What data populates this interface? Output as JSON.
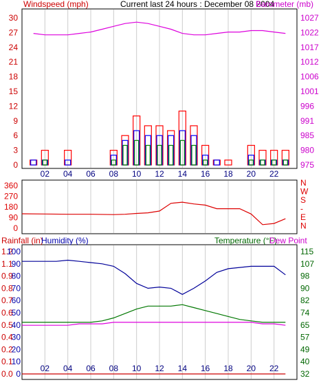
{
  "header": {
    "left_label": "Windspeed (mph)",
    "center_label": "Current last 24 hours : December 08 2004",
    "right_label": "Barometer (mb)"
  },
  "colors": {
    "windspeed_axis": "#cc0000",
    "barometer_axis": "#cc00cc",
    "rainfall_axis": "#cc0000",
    "humidity_axis": "#0000aa",
    "temperature_axis": "#006600",
    "dewpoint_axis": "#cc00cc",
    "wind_bar_red": "#ff0000",
    "wind_bar_blue": "#0000ff",
    "wind_bar_green": "#008000",
    "barometer_line": "#dd00dd",
    "direction_line": "#dd0000",
    "humidity_line": "#000099",
    "temperature_line": "#007700",
    "dewpoint_line": "#dd00dd",
    "rain_line": "#cc0000",
    "grid": "#cccccc"
  },
  "x_ticks": [
    "02",
    "04",
    "06",
    "08",
    "10",
    "12",
    "14",
    "16",
    "18",
    "20",
    "22"
  ],
  "chart_data": [
    {
      "type": "bar",
      "panel": "wind_baro",
      "left_axis": {
        "label": "Windspeed (mph)",
        "ticks": [
          "0",
          "3",
          "6",
          "9",
          "12",
          "15",
          "18",
          "21",
          "24",
          "27",
          "30"
        ],
        "ylim": [
          0,
          30
        ]
      },
      "right_axis": {
        "label": "Barometer (mb)",
        "ticks": [
          "975",
          "980",
          "985",
          "991",
          "996",
          "1001",
          "1006",
          "1012",
          "1017",
          "1022",
          "1027"
        ],
        "ylim": [
          975,
          1027
        ]
      },
      "x": [
        "01",
        "02",
        "03",
        "04",
        "05",
        "06",
        "07",
        "08",
        "09",
        "10",
        "11",
        "12",
        "13",
        "14",
        "15",
        "16",
        "17",
        "18",
        "19",
        "20",
        "21",
        "22",
        "23"
      ],
      "series": [
        {
          "kind": "gust_max",
          "values": [
            1,
            3,
            0,
            3,
            0,
            0,
            0,
            3,
            6,
            10,
            8,
            8,
            7,
            11,
            8,
            4,
            1,
            1,
            0,
            4,
            3,
            3,
            3
          ]
        },
        {
          "kind": "average",
          "values": [
            1,
            1,
            0,
            1,
            0,
            0,
            0,
            2,
            5,
            7,
            6,
            6,
            6,
            7,
            6,
            2,
            1,
            0,
            0,
            2,
            1,
            1,
            1
          ]
        },
        {
          "kind": "minimum",
          "values": [
            0,
            1,
            0,
            0,
            0,
            0,
            0,
            1,
            4,
            5,
            4,
            4,
            4,
            5,
            4,
            1,
            0,
            0,
            0,
            1,
            1,
            1,
            1
          ]
        },
        {
          "kind": "barometer",
          "values": [
            1021.5,
            1021,
            1021,
            1021,
            1021.5,
            1022,
            1023,
            1024,
            1025,
            1025.5,
            1025,
            1024,
            1023,
            1021.5,
            1021,
            1021,
            1021.5,
            1022,
            1022,
            1022.5,
            1022.5,
            1022,
            1021.5
          ]
        }
      ]
    },
    {
      "type": "line",
      "panel": "direction",
      "left_axis": {
        "ticks": [
          "0",
          "90",
          "180",
          "270",
          "360"
        ],
        "ylim": [
          0,
          360
        ]
      },
      "right_axis": {
        "ticks": [
          "N",
          "W",
          "S",
          "-",
          "E",
          "N"
        ]
      },
      "x": [
        "00",
        "02",
        "04",
        "06",
        "08",
        "09",
        "10",
        "11",
        "12",
        "13",
        "14",
        "15",
        "16",
        "17",
        "18",
        "19",
        "20",
        "21",
        "22",
        "23"
      ],
      "series": [
        {
          "name": "",
          "values": [
            122,
            120,
            118,
            118,
            115,
            118,
            125,
            130,
            145,
            210,
            220,
            205,
            195,
            165,
            165,
            165,
            120,
            30,
            40,
            80
          ]
        }
      ]
    },
    {
      "type": "line",
      "panel": "humidity_temp",
      "labels": {
        "rainfall": "Rainfall (in)",
        "humidity": "Humidity (%)",
        "temperature": "Temperature (°F)",
        "dewpoint": "Dew Point"
      },
      "rain_axis": {
        "ticks": [
          "0.0",
          "0.1",
          "0.2",
          "0.4",
          "0.5",
          "0.6",
          "0.7",
          "0.8",
          "0.9",
          "1.1",
          "1.2"
        ],
        "ylim": [
          0,
          1.2
        ]
      },
      "humidity_axis": {
        "ticks": [
          "0",
          "10",
          "20",
          "30",
          "40",
          "50",
          "60",
          "70",
          "80",
          "90",
          "100"
        ],
        "ylim": [
          0,
          100
        ]
      },
      "temp_axis": {
        "ticks": [
          "32",
          "40",
          "49",
          "57",
          "65",
          "74",
          "82",
          "90",
          "98",
          "107",
          "115"
        ],
        "ylim": [
          32,
          115
        ]
      },
      "x": [
        "00",
        "01",
        "02",
        "03",
        "04",
        "05",
        "06",
        "07",
        "08",
        "09",
        "10",
        "11",
        "12",
        "13",
        "14",
        "15",
        "16",
        "17",
        "18",
        "19",
        "20",
        "21",
        "22",
        "23"
      ],
      "series": [
        {
          "kind": "humidity",
          "values": [
            92,
            92,
            92,
            92,
            93,
            92,
            91,
            90,
            88,
            82,
            74,
            70,
            71,
            70,
            65,
            70,
            76,
            83,
            86,
            87,
            88,
            88,
            88,
            81
          ]
        },
        {
          "kind": "temperature",
          "values": [
            67,
            67,
            67,
            67,
            67,
            67,
            67,
            68,
            70,
            73,
            76,
            78,
            78,
            78,
            79,
            77,
            75,
            73,
            71,
            69,
            68,
            67,
            67,
            67
          ]
        },
        {
          "kind": "dewpoint",
          "values": [
            65,
            65,
            65,
            65,
            65,
            66,
            66,
            66,
            67,
            67,
            67,
            67,
            67,
            67,
            67,
            67,
            67,
            67,
            67,
            67,
            67,
            66,
            66,
            65
          ]
        },
        {
          "kind": "rainfall",
          "values": [
            0,
            0,
            0,
            0,
            0,
            0,
            0,
            0,
            0,
            0,
            0,
            0,
            0,
            0,
            0,
            0,
            0,
            0,
            0,
            0,
            0,
            0,
            0,
            0
          ]
        }
      ]
    }
  ]
}
